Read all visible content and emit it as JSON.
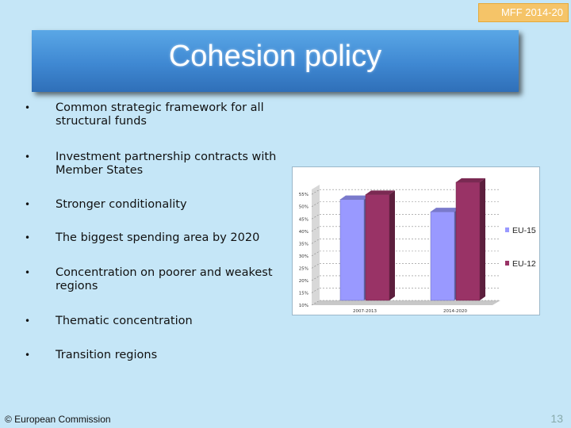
{
  "badge": "MFF 2014-20",
  "title": "Cohesion policy",
  "bullets": [
    {
      "dot": "•",
      "text": "Common strategic framework for all structural funds"
    },
    {
      "dot": "•",
      "text": "Investment partnership contracts with Member States"
    },
    {
      "dot": "•",
      "text": "Stronger conditionality"
    },
    {
      "dot": "•",
      "text": "The biggest spending area by 2020"
    },
    {
      "dot": "•",
      "text": "Concentration on poorer and weakest regions"
    },
    {
      "dot": "•",
      "text": "Thematic concentration"
    },
    {
      "dot": "•",
      "text": "Transition regions"
    }
  ],
  "footer": "© European Commission",
  "page_number": "13",
  "chart_data": {
    "type": "bar",
    "categories": [
      "2007-2013",
      "2014-2020"
    ],
    "series": [
      {
        "name": "EU-15",
        "values": [
          51,
          46
        ],
        "color": "#9999ff"
      },
      {
        "name": "EU-12",
        "values": [
          53,
          58
        ],
        "color": "#993366"
      }
    ],
    "yticks": [
      "10%",
      "15%",
      "20%",
      "25%",
      "30%",
      "35%",
      "40%",
      "45%",
      "50%",
      "55%"
    ],
    "ylim": [
      10,
      57
    ],
    "title": "",
    "xlabel": "",
    "ylabel": "",
    "legend": "right",
    "grid": true
  }
}
